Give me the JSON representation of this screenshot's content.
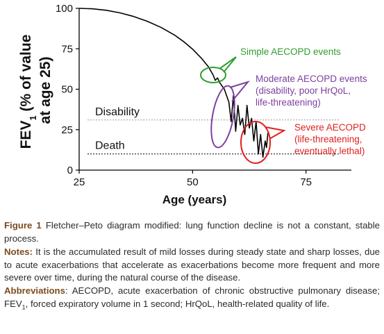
{
  "chart_data": {
    "type": "line",
    "xlabel": "Age (years)",
    "ylabel_main": "FEV",
    "ylabel_sub": "1",
    "ylabel_rest": " (% of value",
    "ylabel_line2": "at age 25)",
    "xlim": [
      25,
      85
    ],
    "ylim": [
      0,
      100
    ],
    "xticks": [
      25,
      50,
      75
    ],
    "yticks": [
      0,
      25,
      50,
      75,
      100
    ],
    "grid": false,
    "series": [
      {
        "color": "#000000",
        "x": [
          25,
          28,
          31,
          34,
          37,
          40,
          43,
          46,
          48,
          50,
          52,
          53.5,
          54.5,
          55,
          55.5,
          56,
          57,
          58,
          58.5,
          59,
          59.5,
          60,
          60.5,
          61,
          61.5,
          62,
          62.5,
          63,
          63.5,
          64,
          64.5,
          65,
          65.5,
          66,
          66.3,
          66.6
        ],
        "y": [
          100,
          99.7,
          98.8,
          97.2,
          95,
          92,
          88.3,
          83.5,
          79.5,
          74.8,
          69,
          63.8,
          59,
          55.5,
          57,
          54,
          50,
          42,
          30,
          46,
          24,
          40,
          28,
          32,
          22,
          40,
          26,
          32,
          18,
          30,
          10,
          22,
          8,
          18,
          14,
          23
        ]
      }
    ],
    "reference_lines": [
      {
        "label": "Disability",
        "y": 31,
        "style": "dotted",
        "color": "#999999"
      },
      {
        "label": "Death",
        "y": 10,
        "style": "dotted",
        "color": "#000000"
      }
    ],
    "annotations": [
      {
        "lines": [
          "Simple AECOPD events"
        ],
        "color": "#2f9e2f"
      },
      {
        "lines": [
          "Moderate AECOPD events",
          "(disability, poor HrQoL,",
          "life-threatening)"
        ],
        "color": "#7b3fa0"
      },
      {
        "lines": [
          "Severe AECOPD",
          "(life-threatening,",
          "eventually lethal)"
        ],
        "color": "#e02020"
      }
    ]
  },
  "caption": {
    "figure_label": "Figure 1",
    "figure_text": "Fletcher–Peto diagram modified: lung function decline is not a constant, stable process.",
    "notes_label": "Notes:",
    "notes_text": "It is the accumulated result of mild losses during steady state and sharp losses, due to acute exacerbations that accelerate as exacerbations become more frequent and more severe over time, during the natural course of the disease.",
    "abbr_label": "Abbreviations",
    "abbr_text_1": ": AECOPD, acute exacerbation of chronic obstructive pulmonary disease; FEV",
    "abbr_sub": "1",
    "abbr_text_2": ", forced expiratory volume in 1 second; HrQoL, health-related quality of life."
  }
}
